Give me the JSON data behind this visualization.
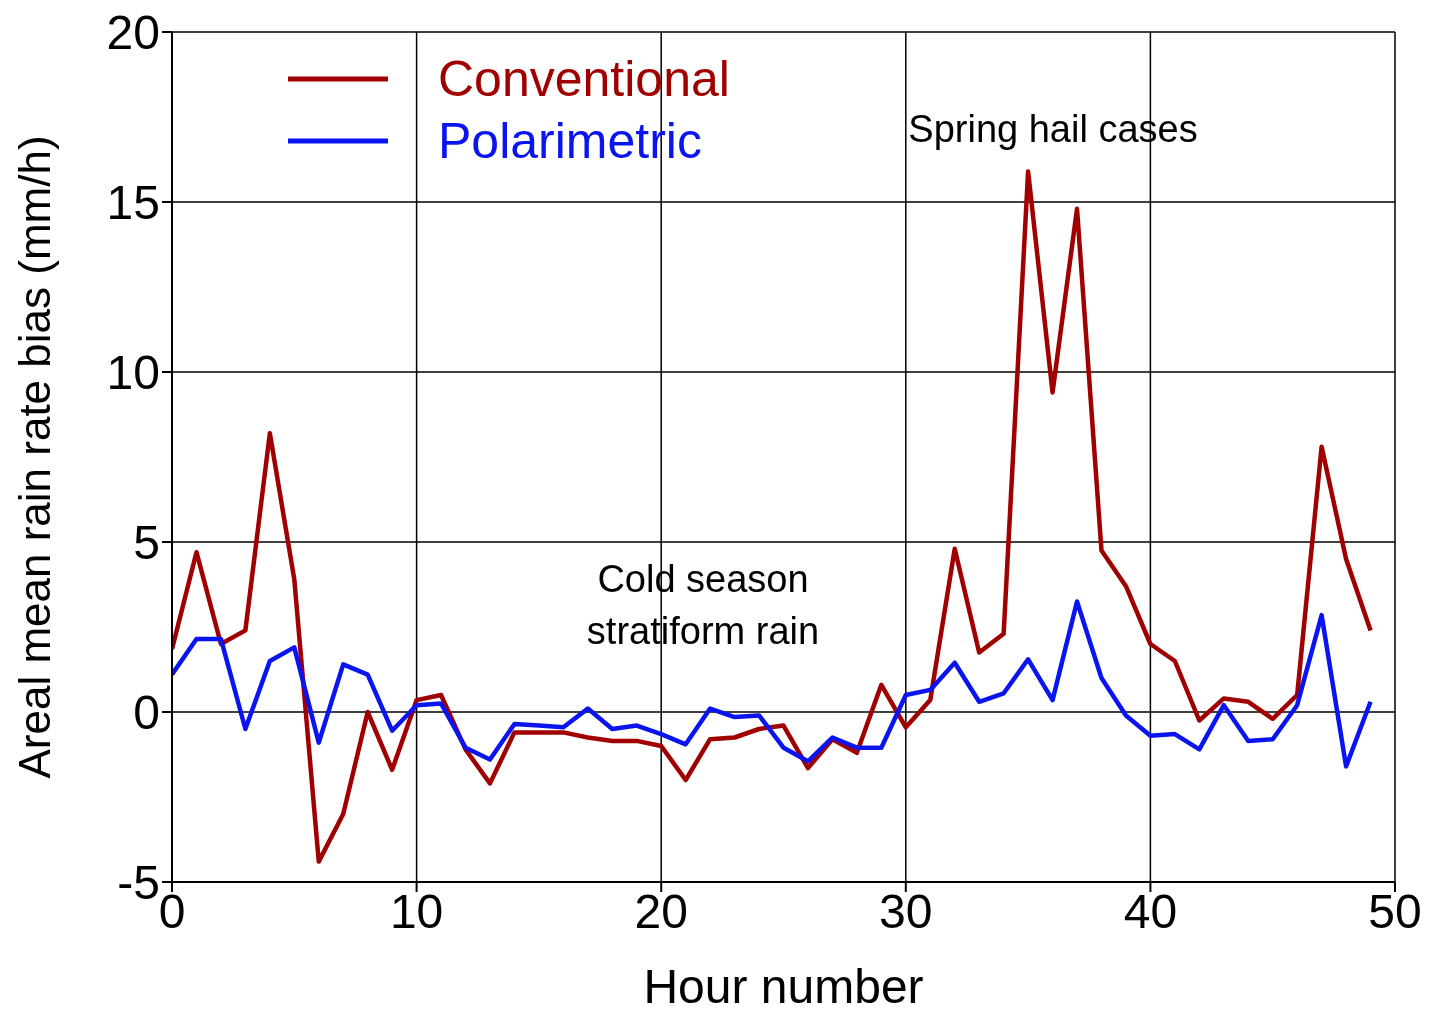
{
  "chart_data": {
    "type": "line",
    "xlabel": "Hour number",
    "ylabel": "Areal mean rain rate bias (mm/h)",
    "x": [
      0,
      1,
      2,
      3,
      4,
      5,
      6,
      7,
      8,
      9,
      10,
      11,
      12,
      13,
      14,
      15,
      16,
      17,
      18,
      19,
      20,
      21,
      22,
      23,
      24,
      25,
      26,
      27,
      28,
      29,
      30,
      31,
      32,
      33,
      34,
      35,
      36,
      37,
      38,
      39,
      40,
      41,
      42,
      43,
      44,
      45,
      46,
      47,
      48,
      49
    ],
    "series": [
      {
        "name": "Conventional",
        "color": "#a00000",
        "values": [
          1.85,
          4.7,
          2.0,
          2.4,
          8.2,
          3.9,
          -4.4,
          -3.0,
          0,
          -1.7,
          0.35,
          0.5,
          -1.1,
          -2.1,
          -0.6,
          -0.6,
          -0.6,
          -0.75,
          -0.85,
          -0.85,
          -1.0,
          -2.0,
          -0.8,
          -0.75,
          -0.5,
          -0.4,
          -1.65,
          -0.8,
          -1.2,
          0.8,
          -0.45,
          0.35,
          4.8,
          1.75,
          2.3,
          15.9,
          9.4,
          14.8,
          4.75,
          3.7,
          2.0,
          1.5,
          -0.25,
          0.4,
          0.3,
          -0.2,
          0.5,
          7.8,
          4.5,
          2.4
        ]
      },
      {
        "name": "Polarimetric",
        "color": "#0a14f0",
        "values": [
          1.1,
          2.15,
          2.15,
          -0.5,
          1.5,
          1.9,
          -0.9,
          1.4,
          1.1,
          -0.55,
          0.2,
          0.25,
          -1.05,
          -1.4,
          -0.35,
          -0.4,
          -0.45,
          0.1,
          -0.5,
          -0.4,
          -0.65,
          -0.95,
          0.1,
          -0.15,
          -0.1,
          -1.05,
          -1.45,
          -0.75,
          -1.05,
          -1.05,
          0.5,
          0.65,
          1.45,
          0.3,
          0.55,
          1.55,
          0.35,
          3.25,
          1.0,
          -0.1,
          -0.7,
          -0.65,
          -1.1,
          0.2,
          -0.85,
          -0.8,
          0.2,
          2.85,
          -1.6,
          0.3
        ]
      }
    ],
    "xlim": [
      0,
      50
    ],
    "xticks": [
      0,
      10,
      20,
      30,
      40,
      50
    ],
    "ylim": [
      -5,
      20
    ],
    "yticks": [
      -5,
      0,
      5,
      10,
      15,
      20
    ],
    "grid": true,
    "legend": "top left",
    "marker": "none",
    "line_style": "solid",
    "annotations": [
      "Spring hail cases",
      "Cold season\nstratiform rain"
    ]
  }
}
